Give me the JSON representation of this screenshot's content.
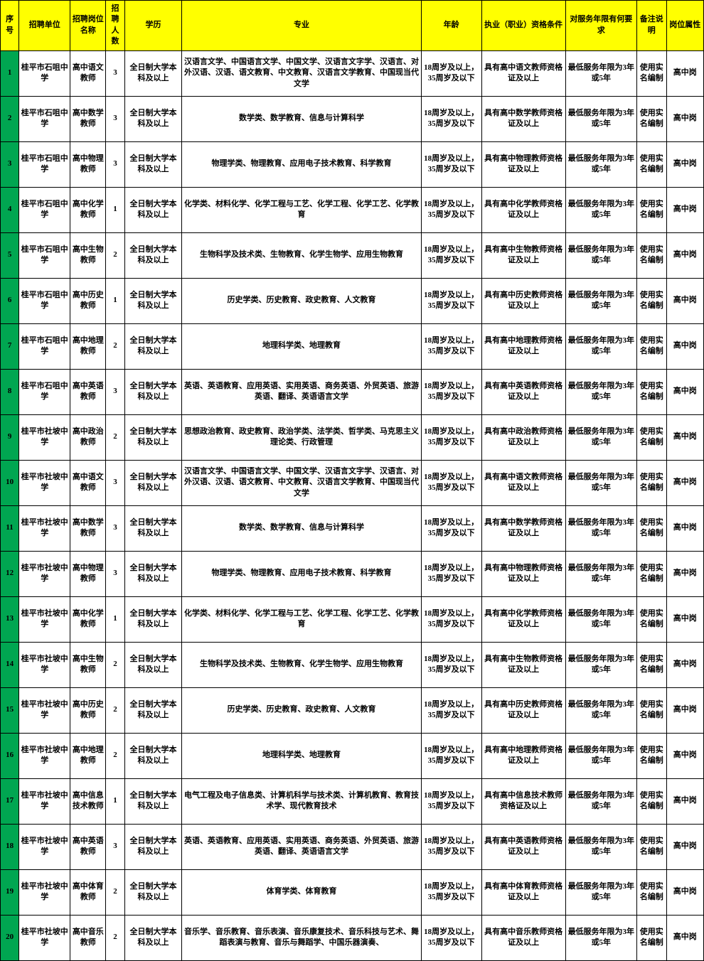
{
  "headers": [
    "序号",
    "招聘单位",
    "招聘岗位名称",
    "招聘人数",
    "学历",
    "专业",
    "年龄",
    "执业（职业）资格条件",
    "对服务年限有何要求",
    "备注说明",
    "岗位属性"
  ],
  "colors": {
    "header_bg": "#ffff00",
    "seq_bg": "#00a651",
    "border": "#000000"
  },
  "col_classes": [
    "c-seq",
    "c-unit",
    "c-pos",
    "c-cnt",
    "c-edu",
    "c-major",
    "c-age",
    "c-qual",
    "c-svc",
    "c-note",
    "c-attr"
  ],
  "rows": [
    {
      "seq": "1",
      "unit": "桂平市石咀中学",
      "position": "高中语文教师",
      "count": "3",
      "education": "全日制大学本科及以上",
      "major": "汉语言文学、中国语言文学、中国文学、汉语言文字学、汉语言、对外汉语、汉语、语文教育、中文教育、汉语言文学教育、中国现当代文学",
      "age": "18周岁及以上，35周岁及以下",
      "qualification": "具有高中语文教师资格证及以上",
      "service": "最低服务年限为3年或5年",
      "note": "使用实名编制",
      "attribute": "高中岗"
    },
    {
      "seq": "2",
      "unit": "桂平市石咀中学",
      "position": "高中数学教师",
      "count": "3",
      "education": "全日制大学本科及以上",
      "major": "数学类、数学教育、信息与计算科学",
      "age": "18周岁及以上，35周岁及以下",
      "qualification": "具有高中数学教师资格证及以上",
      "service": "最低服务年限为3年或5年",
      "note": "使用实名编制",
      "attribute": "高中岗"
    },
    {
      "seq": "3",
      "unit": "桂平市石咀中学",
      "position": "高中物理教师",
      "count": "3",
      "education": "全日制大学本科及以上",
      "major": "物理学类、物理教育、应用电子技术教育、科学教育",
      "age": "18周岁及以上，35周岁及以下",
      "qualification": "具有高中物理教师资格证及以上",
      "service": "最低服务年限为3年或5年",
      "note": "使用实名编制",
      "attribute": "高中岗"
    },
    {
      "seq": "4",
      "unit": "桂平市石咀中学",
      "position": "高中化学教师",
      "count": "1",
      "education": "全日制大学本科及以上",
      "major": "化学类、材料化学、化学工程与工艺、化学工程、化学工艺、化学教育",
      "age": "18周岁及以上，35周岁及以下",
      "qualification": "具有高中化学教师资格证及以上",
      "service": "最低服务年限为3年或5年",
      "note": "使用实名编制",
      "attribute": "高中岗"
    },
    {
      "seq": "5",
      "unit": "桂平市石咀中学",
      "position": "高中生物教师",
      "count": "2",
      "education": "全日制大学本科及以上",
      "major": "生物科学及技术类、生物教育、化学生物学、应用生物教育",
      "age": "18周岁及以上，35周岁及以下",
      "qualification": "具有高中生物教师资格证及以上",
      "service": "最低服务年限为3年或5年",
      "note": "使用实名编制",
      "attribute": "高中岗"
    },
    {
      "seq": "6",
      "unit": "桂平市石咀中学",
      "position": "高中历史教师",
      "count": "1",
      "education": "全日制大学本科及以上",
      "major": "历史学类、历史教育、政史教育、人文教育",
      "age": "18周岁及以上，35周岁及以下",
      "qualification": "具有高中历史教师资格证及以上",
      "service": "最低服务年限为3年或5年",
      "note": "使用实名编制",
      "attribute": "高中岗"
    },
    {
      "seq": "7",
      "unit": "桂平市石咀中学",
      "position": "高中地理教师",
      "count": "2",
      "education": "全日制大学本科及以上",
      "major": "地理科学类、地理教育",
      "age": "18周岁及以上，35周岁及以下",
      "qualification": "具有高中地理教师资格证及以上",
      "service": "最低服务年限为3年或5年",
      "note": "使用实名编制",
      "attribute": "高中岗"
    },
    {
      "seq": "8",
      "unit": "桂平市石咀中学",
      "position": "高中英语教师",
      "count": "3",
      "education": "全日制大学本科及以上",
      "major": "英语、英语教育、应用英语、实用英语、商务英语、外贸英语、旅游英语、翻译、英语语言文学",
      "age": "18周岁及以上，35周岁及以下",
      "qualification": "具有高中英语教师资格证及以上",
      "service": "最低服务年限为3年或5年",
      "note": "使用实名编制",
      "attribute": "高中岗"
    },
    {
      "seq": "9",
      "unit": "桂平市社坡中学",
      "position": "高中政治教师",
      "count": "2",
      "education": "全日制大学本科及以上",
      "major": "思想政治教育、政史教育、政治学类、法学类、哲学类、马克思主义理论类、行政管理",
      "age": "18周岁及以上，35周岁及以下",
      "qualification": "具有高中政治教师资格证及以上",
      "service": "最低服务年限为3年或5年",
      "note": "使用实名编制",
      "attribute": "高中岗"
    },
    {
      "seq": "10",
      "unit": "桂平市社坡中学",
      "position": "高中语文教师",
      "count": "3",
      "education": "全日制大学本科及以上",
      "major": "汉语言文学、中国语言文学、中国文学、汉语言文字学、汉语言、对外汉语、汉语、语文教育、中文教育、汉语言文学教育、中国现当代文学",
      "age": "18周岁及以上，35周岁及以下",
      "qualification": "具有高中语文教师资格证及以上",
      "service": "最低服务年限为3年或5年",
      "note": "使用实名编制",
      "attribute": "高中岗"
    },
    {
      "seq": "11",
      "unit": "桂平市社坡中学",
      "position": "高中数学教师",
      "count": "3",
      "education": "全日制大学本科及以上",
      "major": "数学类、数学教育、信息与计算科学",
      "age": "18周岁及以上，35周岁及以下",
      "qualification": "具有高中数学教师资格证及以上",
      "service": "最低服务年限为3年或5年",
      "note": "使用实名编制",
      "attribute": "高中岗"
    },
    {
      "seq": "12",
      "unit": "桂平市社坡中学",
      "position": "高中物理教师",
      "count": "3",
      "education": "全日制大学本科及以上",
      "major": "物理学类、物理教育、应用电子技术教育、科学教育",
      "age": "18周岁及以上，35周岁及以下",
      "qualification": "具有高中物理教师资格证及以上",
      "service": "最低服务年限为3年或5年",
      "note": "使用实名编制",
      "attribute": "高中岗"
    },
    {
      "seq": "13",
      "unit": "桂平市社坡中学",
      "position": "高中化学教师",
      "count": "1",
      "education": "全日制大学本科及以上",
      "major": "化学类、材料化学、化学工程与工艺、化学工程、化学工艺、化学教育",
      "age": "18周岁及以上，35周岁及以下",
      "qualification": "具有高中化学教师资格证及以上",
      "service": "最低服务年限为3年或5年",
      "note": "使用实名编制",
      "attribute": "高中岗"
    },
    {
      "seq": "14",
      "unit": "桂平市社坡中学",
      "position": "高中生物教师",
      "count": "2",
      "education": "全日制大学本科及以上",
      "major": "生物科学及技术类、生物教育、化学生物学、应用生物教育",
      "age": "18周岁及以上，35周岁及以下",
      "qualification": "具有高中生物教师资格证及以上",
      "service": "最低服务年限为3年或5年",
      "note": "使用实名编制",
      "attribute": "高中岗"
    },
    {
      "seq": "15",
      "unit": "桂平市社坡中学",
      "position": "高中历史教师",
      "count": "2",
      "education": "全日制大学本科及以上",
      "major": "历史学类、历史教育、政史教育、人文教育",
      "age": "18周岁及以上，35周岁及以下",
      "qualification": "具有高中历史教师资格证及以上",
      "service": "最低服务年限为3年或5年",
      "note": "使用实名编制",
      "attribute": "高中岗"
    },
    {
      "seq": "16",
      "unit": "桂平市社坡中学",
      "position": "高中地理教师",
      "count": "2",
      "education": "全日制大学本科及以上",
      "major": "地理科学类、地理教育",
      "age": "18周岁及以上，35周岁及以下",
      "qualification": "具有高中地理教师资格证及以上",
      "service": "最低服务年限为3年或5年",
      "note": "使用实名编制",
      "attribute": "高中岗"
    },
    {
      "seq": "17",
      "unit": "桂平市社坡中学",
      "position": "高中信息技术教师",
      "count": "1",
      "education": "全日制大学本科及以上",
      "major": "电气工程及电子信息类、计算机科学与技术类、计算机教育、教育技术学、现代教育技术",
      "age": "18周岁及以上，35周岁及以下",
      "qualification": "具有高中信息技术教师资格证及以上",
      "service": "最低服务年限为3年或5年",
      "note": "使用实名编制",
      "attribute": "高中岗"
    },
    {
      "seq": "18",
      "unit": "桂平市社坡中学",
      "position": "高中英语教师",
      "count": "3",
      "education": "全日制大学本科及以上",
      "major": "英语、英语教育、应用英语、实用英语、商务英语、外贸英语、旅游英语、翻译、英语语言文学",
      "age": "18周岁及以上，35周岁及以下",
      "qualification": "具有高中英语教师资格证及以上",
      "service": "最低服务年限为3年或5年",
      "note": "使用实名编制",
      "attribute": "高中岗"
    },
    {
      "seq": "19",
      "unit": "桂平市社坡中学",
      "position": "高中体育教师",
      "count": "2",
      "education": "全日制大学本科及以上",
      "major": "体育学类、体育教育",
      "age": "18周岁及以上，35周岁及以下",
      "qualification": "具有高中体育教师资格证及以上",
      "service": "最低服务年限为3年或5年",
      "note": "使用实名编制",
      "attribute": "高中岗"
    },
    {
      "seq": "20",
      "unit": "桂平市社坡中学",
      "position": "高中音乐教师",
      "count": "2",
      "education": "全日制大学本科及以上",
      "major": "音乐学、音乐教育、音乐表演、音乐康复技术、音乐科技与艺术、舞蹈表演与教育、音乐与舞蹈学、中国乐器演奏、",
      "age": "18周岁及以上，35周岁及以下",
      "qualification": "具有高中音乐教师资格证及以上",
      "service": "最低服务年限为3年或5年",
      "note": "使用实名编制",
      "attribute": "高中岗"
    }
  ]
}
